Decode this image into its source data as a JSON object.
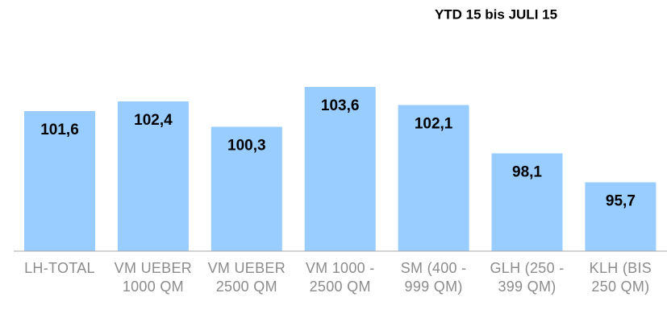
{
  "chart_data": {
    "type": "bar",
    "title": "YTD 15 bis JULI 15",
    "categories": [
      "LH-TOTAL",
      "VM UEBER 1000 QM",
      "VM UEBER 2500 QM",
      "VM 1000 - 2500 QM",
      "SM (400 - 999 QM)",
      "GLH (250 - 399 QM)",
      "KLH (BIS 250 QM)"
    ],
    "values": [
      101.6,
      102.4,
      100.3,
      103.6,
      102.1,
      98.1,
      95.7
    ],
    "value_labels": [
      "101,6",
      "102,4",
      "100,3",
      "103,6",
      "102,1",
      "98,1",
      "95,7"
    ],
    "color": "#99ccff",
    "ylim": [
      90,
      105
    ]
  }
}
